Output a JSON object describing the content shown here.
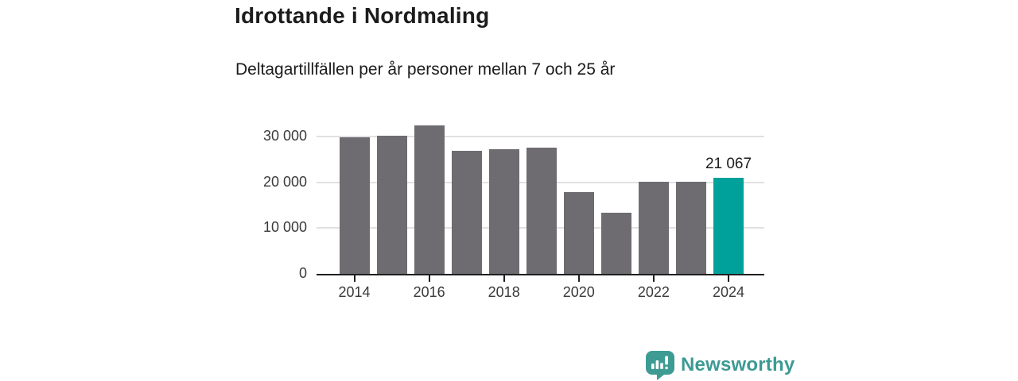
{
  "header": {
    "title": "Idrottande i Nordmaling",
    "subtitle": "Deltagartillfällen per år personer mellan 7 och 25 år"
  },
  "chart_data": {
    "type": "bar",
    "title": "Idrottande i Nordmaling",
    "subtitle": "Deltagartillfällen per år personer mellan 7 och 25 år",
    "categories": [
      2014,
      2015,
      2016,
      2017,
      2018,
      2019,
      2020,
      2021,
      2022,
      2023,
      2024
    ],
    "values": [
      29800,
      30100,
      32400,
      26800,
      27300,
      27500,
      17900,
      13400,
      20100,
      20200,
      21067
    ],
    "series_name": "Deltagartillfällen",
    "xlabel": "",
    "ylabel": "",
    "ylim": [
      0,
      34000
    ],
    "grid": "horizontal-only",
    "legend": "none",
    "y_ticks": [
      {
        "label": "30 000",
        "value": 30000
      },
      {
        "label": "20 000",
        "value": 20000
      },
      {
        "label": "10 000",
        "value": 10000
      },
      {
        "label": "0",
        "value": 0
      }
    ],
    "x_ticks": [
      {
        "label": "2014",
        "year": 2014
      },
      {
        "label": "2016",
        "year": 2016
      },
      {
        "label": "2018",
        "year": 2018
      },
      {
        "label": "2020",
        "year": 2020
      },
      {
        "label": "2022",
        "year": 2022
      },
      {
        "label": "2024",
        "year": 2024
      }
    ],
    "highlight_index": 10,
    "annotation": {
      "index": 10,
      "text": "21 067"
    },
    "colors": {
      "bar": "#6e6b71",
      "highlight": "#00a19a",
      "gridline": "#e1e1e1",
      "axis": "#1f1f1f",
      "tick_label": "#3a3a3a",
      "data_label": "#1c1c1c"
    }
  },
  "branding": {
    "logo_text": "Newsworthy",
    "logo_color": "#3c9a93",
    "logo_icon": "newsworthy-speech-bubble-chart-icon"
  }
}
